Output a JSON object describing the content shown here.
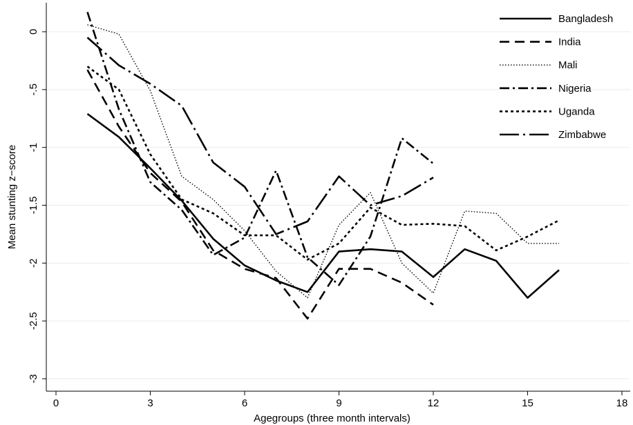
{
  "chart_data": {
    "type": "line",
    "xlabel": "Agegroups (three month intervals)",
    "ylabel": "Mean stunting z−score",
    "xlim": [
      0,
      18
    ],
    "ylim": [
      -3,
      0.2
    ],
    "xticks": [
      0,
      3,
      6,
      9,
      12,
      15,
      18
    ],
    "yticks": [
      0,
      -0.5,
      -1,
      -1.5,
      -2,
      -2.5,
      -3
    ],
    "xtick_labels": [
      "0",
      "3",
      "6",
      "9",
      "12",
      "15",
      "18"
    ],
    "ytick_labels": [
      "0",
      "-.5",
      "-1",
      "-1.5",
      "-2",
      "-2.5",
      "-3"
    ],
    "grid": "horizontal",
    "legend_position": "top-right",
    "series": [
      {
        "name": "Bangladesh",
        "style": "solid",
        "x": [
          1,
          2,
          3,
          4,
          5,
          6,
          7,
          8,
          9,
          10,
          11,
          12,
          13,
          14,
          15,
          16
        ],
        "y": [
          -0.71,
          -0.91,
          -1.18,
          -1.46,
          -1.79,
          -2.02,
          -2.15,
          -2.25,
          -1.9,
          -1.88,
          -1.9,
          -2.12,
          -1.88,
          -1.98,
          -2.3,
          -2.06
        ]
      },
      {
        "name": "India",
        "style": "dash",
        "x": [
          1,
          2,
          3,
          4,
          5,
          6,
          7,
          8,
          9,
          10,
          11,
          12
        ],
        "y": [
          -0.33,
          -0.82,
          -1.22,
          -1.47,
          -1.89,
          -2.05,
          -2.13,
          -2.48,
          -2.05,
          -2.05,
          -2.17,
          -2.36
        ]
      },
      {
        "name": "Mali",
        "style": "dot",
        "x": [
          1,
          2,
          3,
          4,
          5,
          6,
          7,
          8,
          9,
          10,
          11,
          12,
          13,
          14,
          15,
          16
        ],
        "y": [
          0.06,
          -0.02,
          -0.51,
          -1.25,
          -1.45,
          -1.72,
          -2.07,
          -2.3,
          -1.67,
          -1.39,
          -2.0,
          -2.26,
          -1.55,
          -1.57,
          -1.83,
          -1.83
        ]
      },
      {
        "name": "Nigeria",
        "style": "dashdot",
        "x": [
          1,
          2,
          3,
          4,
          5,
          6,
          7,
          8,
          9,
          10,
          11,
          12
        ],
        "y": [
          0.17,
          -0.67,
          -1.3,
          -1.54,
          -1.93,
          -1.78,
          -1.2,
          -1.95,
          -2.19,
          -1.77,
          -0.92,
          -1.14
        ]
      },
      {
        "name": "Uganda",
        "style": "shortdash",
        "x": [
          1,
          2,
          3,
          4,
          5,
          6,
          7,
          8,
          9,
          10,
          11,
          12,
          13,
          14,
          15,
          16
        ],
        "y": [
          -0.3,
          -0.5,
          -1.06,
          -1.45,
          -1.57,
          -1.76,
          -1.76,
          -1.97,
          -1.83,
          -1.52,
          -1.67,
          -1.66,
          -1.68,
          -1.89,
          -1.77,
          -1.63
        ]
      },
      {
        "name": "Zimbabwe",
        "style": "longdashdot",
        "x": [
          1,
          2,
          3,
          4,
          5,
          6,
          7,
          8,
          9,
          10,
          11,
          12
        ],
        "y": [
          -0.05,
          -0.29,
          -0.45,
          -0.64,
          -1.13,
          -1.34,
          -1.75,
          -1.64,
          -1.25,
          -1.5,
          -1.42,
          -1.26
        ]
      }
    ]
  }
}
